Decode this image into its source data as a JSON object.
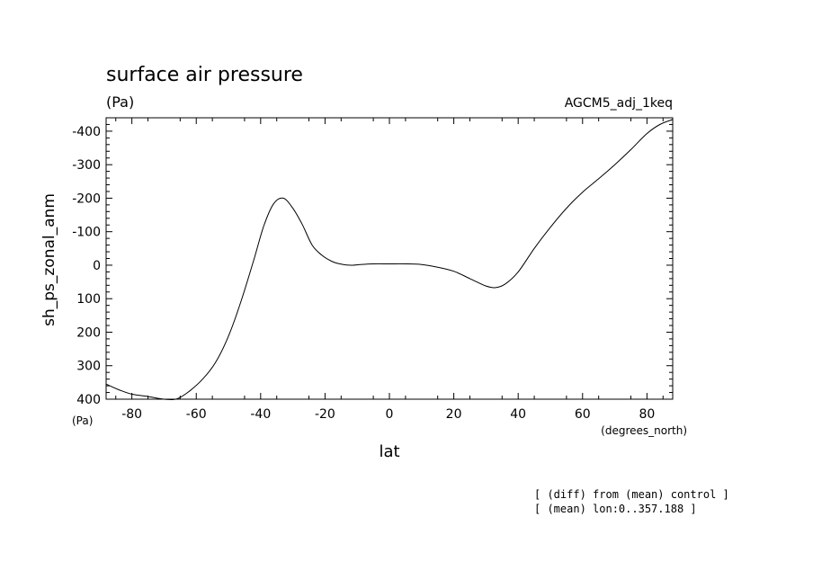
{
  "chart_data": {
    "type": "line",
    "title": "surface air pressure",
    "units": "(Pa)",
    "experiment": "AGCM5_adj_1keq",
    "ylabel": "sh_ps_zonal_anm",
    "y_unit_label": "(Pa)",
    "xlabel": "lat",
    "x_unit_label": "(degrees_north)",
    "xlim": [
      -88,
      88
    ],
    "ylim": [
      400,
      -440
    ],
    "x_ticks": [
      -80,
      -60,
      -40,
      -20,
      0,
      20,
      40,
      60,
      80
    ],
    "x_tick_labels": [
      "-80",
      "-60",
      "-40",
      "-20",
      "0",
      "20",
      "40",
      "60",
      "80"
    ],
    "y_ticks": [
      -400,
      -300,
      -200,
      -100,
      0,
      100,
      200,
      300,
      400
    ],
    "y_tick_labels": [
      "-400",
      "-300",
      "-200",
      "-100",
      "0",
      "100",
      "200",
      "300",
      "400"
    ],
    "grid": false,
    "series": [
      {
        "x": [
          -88,
          -84,
          -80,
          -75,
          -70,
          -66,
          -62,
          -58,
          -54,
          -50,
          -46,
          -42,
          -39,
          -36,
          -33,
          -30,
          -27,
          -24,
          -21,
          -18,
          -15,
          -12,
          -9,
          -5,
          0,
          5,
          10,
          15,
          20,
          25,
          30,
          33,
          36,
          40,
          45,
          50,
          55,
          60,
          65,
          70,
          75,
          80,
          84,
          88
        ],
        "y": [
          355,
          372,
          385,
          392,
          400,
          399,
          375,
          340,
          290,
          212,
          105,
          -20,
          -118,
          -183,
          -200,
          -170,
          -120,
          -60,
          -30,
          -12,
          -3,
          0,
          -2,
          -4,
          -4,
          -4,
          -2,
          6,
          18,
          40,
          62,
          67,
          56,
          20,
          -50,
          -113,
          -170,
          -218,
          -258,
          -300,
          -345,
          -393,
          -420,
          -435
        ]
      }
    ]
  },
  "footnotes": [
    "[ (diff) from (mean) control ]",
    "[ (mean) lon:0..357.188 ]"
  ]
}
